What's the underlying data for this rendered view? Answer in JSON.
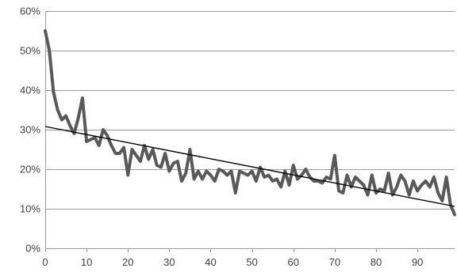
{
  "chart_data": {
    "type": "line",
    "title": "",
    "xlabel": "",
    "ylabel": "",
    "xlim": [
      0,
      99
    ],
    "ylim": [
      0,
      60
    ],
    "y_ticks": [
      0,
      10,
      20,
      30,
      40,
      50,
      60
    ],
    "y_tick_labels": [
      "0%",
      "10%",
      "20%",
      "30%",
      "40%",
      "50%",
      "60%"
    ],
    "x_ticks": [
      0,
      10,
      20,
      30,
      40,
      50,
      60,
      70,
      80,
      90
    ],
    "x_tick_labels": [
      "0",
      "10",
      "20",
      "30",
      "40",
      "50",
      "60",
      "70",
      "80",
      "90"
    ],
    "grid": "horizontal",
    "legend": "none",
    "colors": {
      "series": "#595959",
      "trend": "#000000",
      "grid": "#9a9a9a",
      "text": "#404040"
    },
    "series": [
      {
        "x": [
          0,
          1,
          2,
          3,
          4,
          5,
          6,
          7,
          8,
          9,
          10,
          11,
          12,
          13,
          14,
          15,
          16,
          17,
          18,
          19,
          20,
          21,
          22,
          23,
          24,
          25,
          26,
          27,
          28,
          29,
          30,
          31,
          32,
          33,
          34,
          35,
          36,
          37,
          38,
          39,
          40,
          41,
          42,
          43,
          44,
          45,
          46,
          47,
          48,
          49,
          50,
          51,
          52,
          53,
          54,
          55,
          56,
          57,
          58,
          59,
          60,
          61,
          62,
          63,
          64,
          65,
          66,
          67,
          68,
          69,
          70,
          71,
          72,
          73,
          74,
          75,
          76,
          77,
          78,
          79,
          80,
          81,
          82,
          83,
          84,
          85,
          86,
          87,
          88,
          89,
          90,
          91,
          92,
          93,
          94,
          95,
          96,
          97,
          98,
          99
        ],
        "values": [
          55,
          50,
          39.5,
          35,
          32.5,
          33.5,
          31,
          29,
          33,
          38,
          27,
          27.5,
          28,
          26,
          30,
          28.5,
          26,
          24,
          24,
          25.5,
          18.5,
          25,
          23.5,
          22,
          26,
          22.5,
          25,
          21,
          20.5,
          24,
          19.5,
          21.5,
          22,
          17,
          19,
          25,
          17.5,
          19.5,
          17.5,
          19.5,
          18.5,
          17,
          20,
          19.5,
          18.5,
          19.5,
          14,
          19.5,
          19,
          18.5,
          19.5,
          17,
          20.5,
          18,
          18.5,
          17,
          17.5,
          15.5,
          19.5,
          16,
          21,
          17.5,
          18.5,
          20,
          18,
          17,
          17,
          16.5,
          18,
          17.5,
          23.5,
          14.5,
          14,
          18.5,
          15.5,
          18,
          17,
          16,
          13.5,
          18.5,
          14,
          15,
          14.5,
          19,
          13.5,
          15.5,
          18.5,
          17,
          13.5,
          17,
          14.5,
          16,
          17,
          15.5,
          18,
          14,
          12,
          18,
          11,
          8.5
        ]
      }
    ],
    "trendline": {
      "type": "linear",
      "x": [
        0,
        99
      ],
      "values": [
        30.8,
        10.6
      ]
    }
  }
}
